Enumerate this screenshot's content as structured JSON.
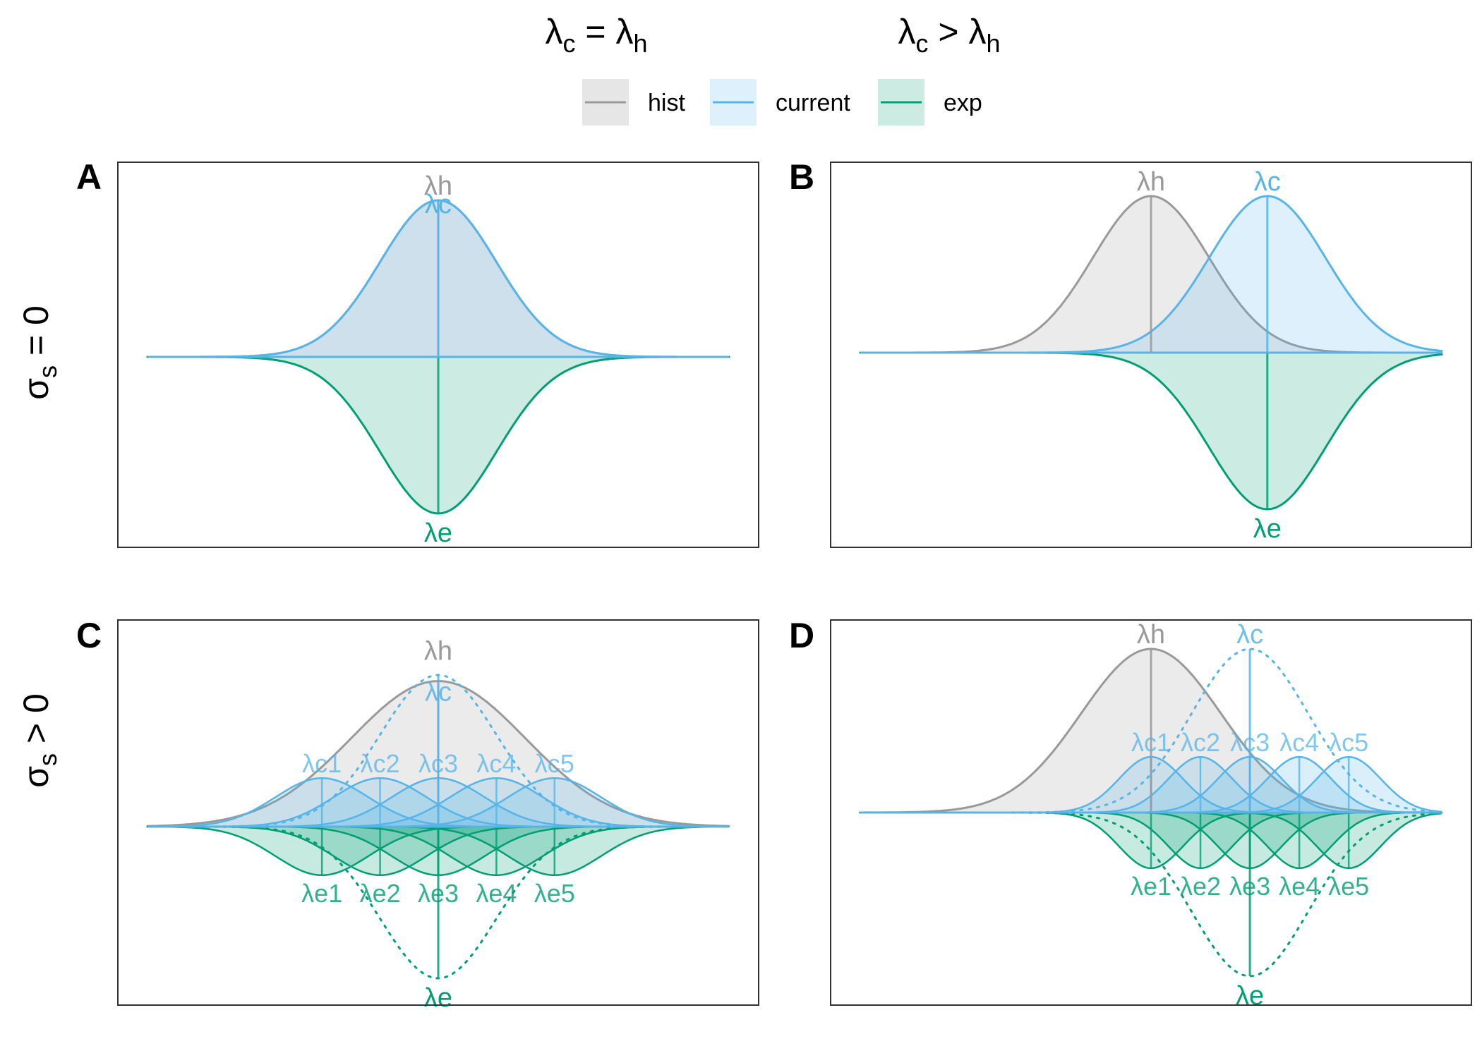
{
  "column_titles": [
    {
      "base": "λ",
      "sub1": "c",
      "op": " = ",
      "base2": "λ",
      "sub2": "h"
    },
    {
      "base": "λ",
      "sub1": "c",
      "op": " > ",
      "base2": "λ",
      "sub2": "h"
    }
  ],
  "row_titles": [
    {
      "base": "σ",
      "sub": "s",
      "rest": " = 0"
    },
    {
      "base": "σ",
      "sub": "s",
      "rest": " > 0"
    }
  ],
  "legend": {
    "placement": "top",
    "items": [
      {
        "key": "hist",
        "label": "hist"
      },
      {
        "key": "current",
        "label": "current"
      },
      {
        "key": "exp",
        "label": "exp"
      }
    ]
  },
  "colors": {
    "hist_line": "#999999",
    "hist_fill": "#e6e6e6",
    "current_line": "#56b4e9",
    "current_fill": "#56b4e9",
    "exp_line": "#009e73",
    "exp_fill": "#009e73",
    "panel_border": "#333333"
  },
  "chart_data": [
    {
      "tag": "A",
      "type": "area",
      "x_range": [
        -5,
        5
      ],
      "hist_current_mean": 0,
      "sd": 1,
      "curves": [
        {
          "series": "hist",
          "mean": 0,
          "sd": 1,
          "height": 1.0
        },
        {
          "series": "current",
          "mean": 0,
          "sd": 1,
          "height": 1.0
        },
        {
          "series": "exp",
          "mean": 0,
          "sd": 1,
          "height": -1.0
        }
      ],
      "labels": [
        {
          "text": "λh",
          "series": "hist"
        },
        {
          "text": "λc",
          "series": "current"
        },
        {
          "text": "λe",
          "series": "exp"
        }
      ]
    },
    {
      "tag": "B",
      "type": "area",
      "x_range": [
        -5,
        5
      ],
      "sd": 1,
      "curves": [
        {
          "series": "hist",
          "mean": 0,
          "sd": 1,
          "height": 1.0
        },
        {
          "series": "current",
          "mean": 2,
          "sd": 1,
          "height": 1.0
        },
        {
          "series": "exp",
          "mean": 2,
          "sd": 1,
          "height": -1.0
        }
      ],
      "labels": [
        {
          "text": "λh",
          "series": "hist"
        },
        {
          "text": "λc",
          "series": "current"
        },
        {
          "text": "λe",
          "series": "exp"
        }
      ]
    },
    {
      "tag": "C",
      "type": "area",
      "x_range": [
        -5,
        5
      ],
      "curves": [
        {
          "series": "hist",
          "mean": 0,
          "sd": 1.5,
          "height": 0.96
        },
        {
          "series": "current",
          "mean": 0,
          "sd": 1,
          "height": 1.0,
          "style": "dotted",
          "drawn": "envelope"
        },
        {
          "series": "exp",
          "mean": 0,
          "sd": 1,
          "height": -1.0,
          "style": "dotted"
        }
      ],
      "sub_curves": {
        "means": [
          -2,
          -1,
          0,
          1,
          2
        ],
        "sd": 0.8,
        "height": 0.32,
        "current_labels": [
          "λc1",
          "λc2",
          "λc3",
          "λc4",
          "λc5"
        ],
        "exp_labels": [
          "λe1",
          "λe2",
          "λe3",
          "λe4",
          "λe5"
        ]
      },
      "labels": [
        {
          "text": "λh",
          "series": "hist"
        },
        {
          "text": "λc",
          "series": "current"
        },
        {
          "text": "λe",
          "series": "exp"
        }
      ]
    },
    {
      "tag": "D",
      "type": "area",
      "x_range": [
        -5,
        5
      ],
      "curves": [
        {
          "series": "hist",
          "mean": 0,
          "sd": 1.2,
          "height": 1.0
        },
        {
          "series": "current",
          "mean": 1.7,
          "sd": 1,
          "height": 1.0,
          "style": "dotted"
        },
        {
          "series": "exp",
          "mean": 1.7,
          "sd": 1,
          "height": -1.0,
          "style": "dotted"
        }
      ],
      "sub_curves": {
        "means": [
          0,
          0.85,
          1.7,
          2.55,
          3.4
        ],
        "sd": 0.55,
        "height": 0.34,
        "current_labels": [
          "λc1",
          "λc2",
          "λc3",
          "λc4",
          "λc5"
        ],
        "exp_labels": [
          "λe1",
          "λe2",
          "λe3",
          "λe4",
          "λe5"
        ]
      },
      "labels": [
        {
          "text": "λh",
          "series": "hist"
        },
        {
          "text": "λc",
          "series": "current"
        },
        {
          "text": "λe",
          "series": "exp"
        }
      ]
    }
  ]
}
